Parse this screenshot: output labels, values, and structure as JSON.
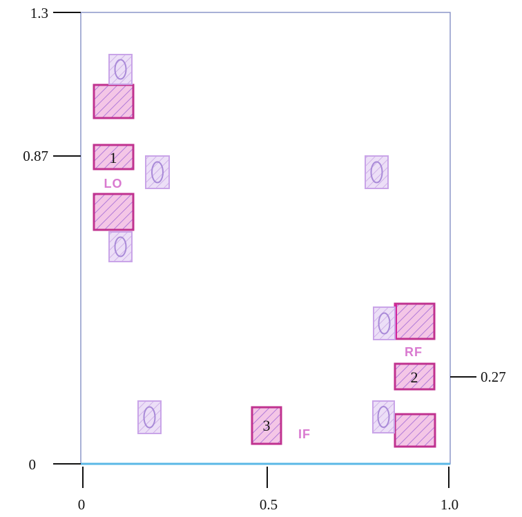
{
  "axes": {
    "x_ticks": [
      "0",
      "0.5",
      "1.0"
    ],
    "y_ticks": [
      "1.3",
      "0.87",
      "0"
    ],
    "right_tick": "0.27"
  },
  "ports": [
    {
      "label": "LO",
      "number": "1"
    },
    {
      "label": "RF",
      "number": "2"
    },
    {
      "label": "IF",
      "number": "3"
    }
  ],
  "colors": {
    "pad_border": "#c0328f",
    "pad_fill": "#f4c6e6",
    "via_border": "#a98ad8",
    "via_fill": "#e9dcf6",
    "hatch": "#b17ad8",
    "label": "#d97ad0",
    "outline": "#8c96c8",
    "baseline": "#5ab8e6"
  }
}
